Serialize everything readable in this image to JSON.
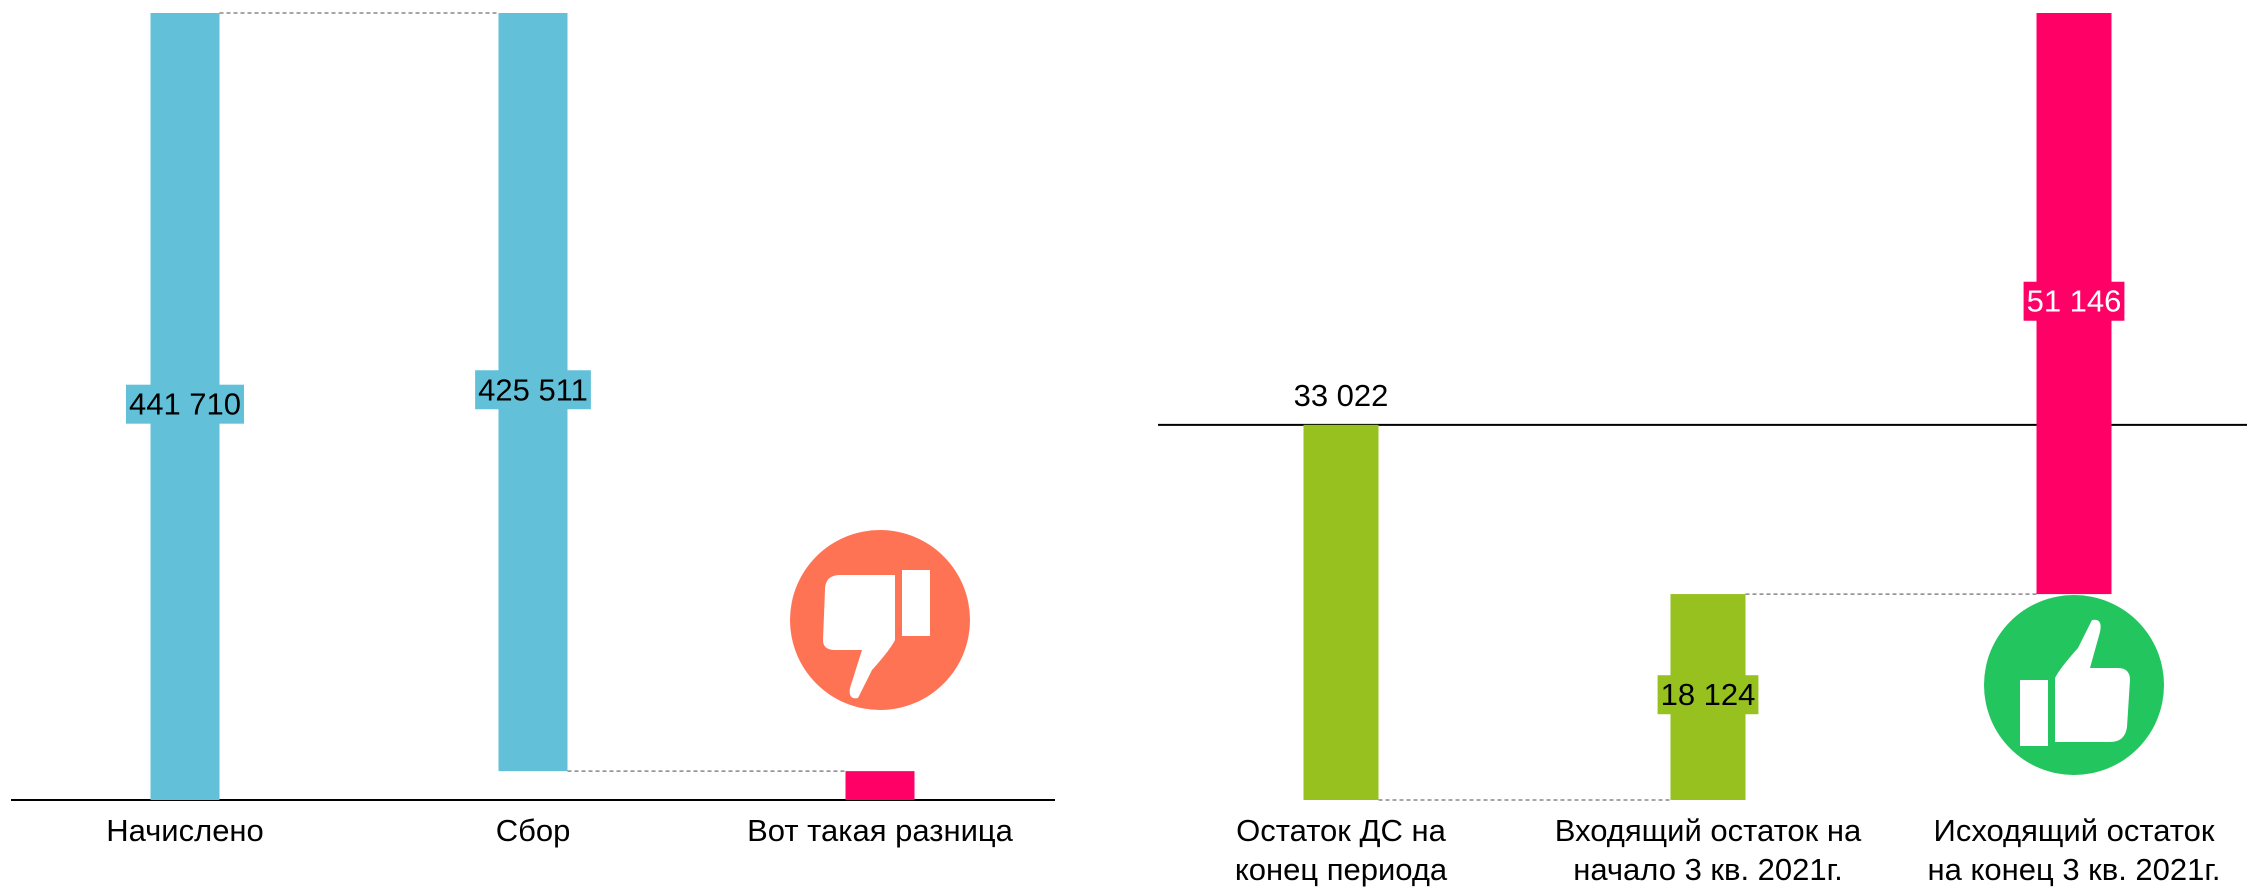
{
  "chart_data": [
    {
      "type": "waterfall",
      "categories": [
        "Начислено",
        "Сбор",
        "Вот такая разница"
      ],
      "values": [
        441710,
        -425511,
        16199
      ],
      "value_labels": [
        "441 710",
        "425 511",
        null
      ],
      "measure": [
        "absolute",
        "relative",
        "total"
      ],
      "colors": [
        "#62c1d9",
        "#62c1d9",
        "#ff0066"
      ],
      "label_positions": [
        "center",
        "center",
        "center"
      ],
      "label_text_colors": [
        "#000000",
        "#000000",
        "#000000"
      ],
      "ylim": [
        0,
        441710
      ]
    },
    {
      "type": "waterfall",
      "categories": [
        "Остаток ДС на\nконец периода",
        "Входящий остаток на\nначало 3 кв. 2021г.",
        "Исходящий остаток\nна конец 3 кв. 2021г."
      ],
      "values": [
        -33022,
        18124,
        51146
      ],
      "value_labels": [
        "33 022",
        "18 124",
        "51 146"
      ],
      "measure": [
        "relative",
        "relative",
        "relative"
      ],
      "colors": [
        "#96c11f",
        "#96c11f",
        "#ff0066"
      ],
      "label_positions": [
        "outside",
        "center",
        "center"
      ],
      "label_text_colors": [
        "#000000",
        "#000000",
        "#ffffff"
      ],
      "ylim": [
        -33022,
        36248
      ]
    }
  ]
}
